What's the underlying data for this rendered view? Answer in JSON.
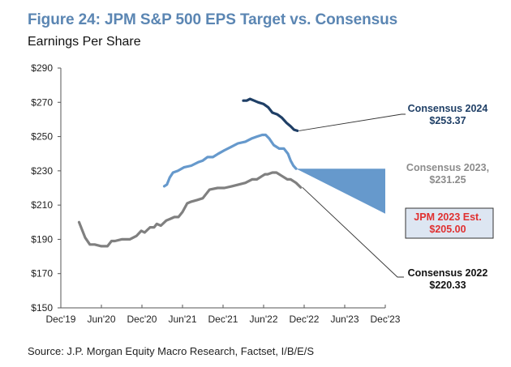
{
  "chart_data": {
    "type": "line",
    "title": "Figure 24: JPM S&P 500 EPS Target vs. Consensus",
    "subtitle": "Earnings Per Share",
    "source": "Source: J.P. Morgan Equity Macro Research, Factset, I/B/E/S",
    "xlabel": "",
    "ylabel": "",
    "x_ticks": [
      "Dec'19",
      "Jun'20",
      "Dec'20",
      "Jun'21",
      "Dec'21",
      "Jun'22",
      "Dec'22",
      "Jun'23",
      "Dec'23"
    ],
    "y_ticks": [
      "$150",
      "$170",
      "$190",
      "$210",
      "$230",
      "$250",
      "$270",
      "$290"
    ],
    "ylim": [
      150,
      290
    ],
    "xlim_months_from_dec19": [
      0,
      48
    ],
    "grid": false,
    "series": [
      {
        "name": "Consensus 2022",
        "color": "#808080",
        "x_months": [
          2.7,
          3.1,
          3.6,
          4.3,
          5.0,
          6.0,
          6.9,
          7.5,
          8.0,
          9.0,
          10.2,
          11.2,
          11.9,
          12.4,
          13.2,
          13.8,
          14.2,
          14.8,
          15.6,
          16.2,
          16.8,
          17.4,
          18.0,
          18.7,
          19.3,
          20.2,
          21.0,
          22.0,
          23.2,
          24.2,
          25.3,
          26.3,
          27.3,
          28.3,
          29.0,
          29.8,
          30.2,
          30.6,
          31.3,
          31.9,
          32.7,
          33.5,
          34.0,
          34.8,
          35.5
        ],
        "values": [
          200,
          196,
          191,
          187,
          187,
          186,
          186,
          189,
          189,
          190,
          190,
          192,
          195,
          194,
          197,
          197,
          199,
          198,
          201,
          202,
          203,
          203,
          206,
          211,
          212,
          213,
          214,
          219,
          220,
          220,
          221,
          222,
          223,
          225,
          225,
          227,
          228,
          228,
          229,
          229,
          227,
          225,
          225,
          223,
          220.33
        ]
      },
      {
        "name": "Consensus 2023",
        "color": "#6699cc",
        "x_months": [
          15.3,
          15.7,
          16.1,
          16.6,
          17.3,
          18.2,
          19.3,
          20.3,
          21.0,
          21.7,
          22.5,
          23.3,
          24.2,
          25.2,
          26.2,
          27.3,
          28.3,
          29.0,
          29.8,
          30.3,
          30.8,
          31.5,
          32.3,
          33.0,
          33.6,
          34.0,
          34.4,
          34.8
        ],
        "values": [
          221,
          222,
          226,
          229,
          230,
          232,
          233,
          235,
          236,
          238,
          238,
          240,
          242,
          244,
          246,
          247,
          249,
          250,
          251,
          251,
          249,
          245,
          243,
          243,
          240,
          236,
          233,
          231.25
        ]
      },
      {
        "name": "Consensus 2024",
        "color": "#1f3f66",
        "x_months": [
          27.0,
          27.5,
          28.0,
          28.6,
          29.2,
          30.0,
          30.7,
          31.3,
          32.0,
          32.7,
          33.4,
          34.0,
          34.5,
          35.0
        ],
        "values": [
          271,
          271,
          272,
          271,
          270,
          269,
          267,
          264,
          263,
          261,
          258,
          256,
          254,
          253.37
        ]
      }
    ],
    "shaded_area": {
      "name": "JPM 2023 Est. range",
      "color": "#6699cc",
      "start_month": 34.8,
      "end_month": 48,
      "upper_value": 231.25,
      "lower_value_end": 205.0
    },
    "annotations": [
      {
        "line1": "Consensus 2024",
        "line2": "$253.37",
        "color": "#1f3f66",
        "points_to": "Consensus 2024"
      },
      {
        "line1": "Consensus 2023,",
        "line2": "$231.25",
        "color": "#8c8c8c",
        "points_to": "Consensus 2023"
      },
      {
        "line1": "JPM 2023 Est.",
        "line2": "$205.00",
        "color": "#e03030",
        "boxed": true,
        "box_fill": "#dde6f2",
        "points_to": "JPM 2023 Est."
      },
      {
        "line1": "Consensus 2022",
        "line2": "$220.33",
        "color": "#111111",
        "points_to": "Consensus 2022"
      }
    ]
  }
}
